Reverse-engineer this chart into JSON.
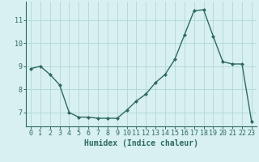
{
  "x": [
    0,
    1,
    2,
    3,
    4,
    5,
    6,
    7,
    8,
    9,
    10,
    11,
    12,
    13,
    14,
    15,
    16,
    17,
    18,
    19,
    20,
    21,
    22,
    23
  ],
  "y": [
    8.9,
    9.0,
    8.65,
    8.2,
    7.0,
    6.8,
    6.8,
    6.75,
    6.75,
    6.75,
    7.1,
    7.5,
    7.8,
    8.3,
    8.65,
    9.3,
    10.35,
    11.4,
    11.45,
    10.3,
    9.2,
    9.1,
    9.1,
    6.6
  ],
  "line_color": "#2d6b5e",
  "marker": "D",
  "marker_size": 2.0,
  "bg_color": "#d8f0f0",
  "grid_color": "#b0d8d8",
  "xlabel": "Humidex (Indice chaleur)",
  "xlim": [
    -0.5,
    23.5
  ],
  "ylim": [
    6.4,
    11.8
  ],
  "yticks": [
    7,
    8,
    9,
    10,
    11
  ],
  "xtick_labels": [
    "0",
    "1",
    "2",
    "3",
    "4",
    "5",
    "6",
    "7",
    "8",
    "9",
    "10",
    "11",
    "12",
    "13",
    "14",
    "15",
    "16",
    "17",
    "18",
    "19",
    "20",
    "21",
    "22",
    "23"
  ],
  "label_fontsize": 7,
  "tick_fontsize": 6
}
